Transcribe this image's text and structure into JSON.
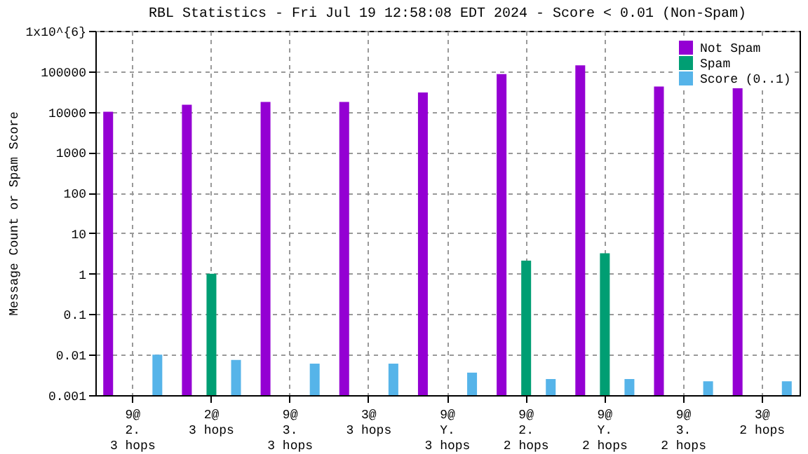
{
  "chart_data": {
    "type": "bar",
    "title": "RBL Statistics - Fri Jul 19 12:58:08 EDT 2024 - Score < 0.01 (Non-Spam)",
    "ylabel": "Message Count or Spam Score",
    "categories": [
      "9@\n2.\n3 hops",
      "2@\n3 hops",
      "9@\n3.\n3 hops",
      "3@\n3 hops",
      "9@\nY.\n3 hops",
      "9@\n2.\n2 hops",
      "9@\nY.\n2 hops",
      "9@\n3.\n2 hops",
      "3@\n2 hops"
    ],
    "series": [
      {
        "name": "Not Spam",
        "color": "#9400d3",
        "values": [
          10000,
          15000,
          17500,
          17500,
          30000,
          85000,
          140000,
          42000,
          42000
        ]
      },
      {
        "name": "Spam",
        "color": "#009e73",
        "values": [
          null,
          1,
          null,
          null,
          null,
          2.1,
          3.2,
          null,
          null
        ]
      },
      {
        "name": "Score (0..1)",
        "color": "#56b4e9",
        "values": [
          0.01,
          0.0074,
          0.006,
          0.006,
          0.0036,
          0.0025,
          0.0025,
          0.0022,
          0.0022
        ]
      }
    ],
    "log": true,
    "ylim": [
      0.001,
      1000000
    ],
    "yticks": [
      0.001,
      0.01,
      0.1,
      1,
      10,
      100,
      1000,
      10000,
      100000,
      {
        "value": 1000000,
        "label": "1x10^{6}"
      }
    ],
    "grid": true,
    "legend": "top right"
  }
}
